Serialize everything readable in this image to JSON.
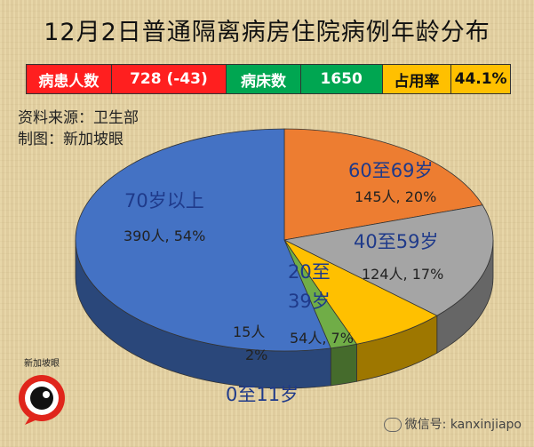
{
  "title": "12月2日普通隔离病房住院病例年龄分布",
  "stats": {
    "patients_label": "病患人数",
    "patients_value": "728 (-43)",
    "beds_label": "病床数",
    "beds_value": "1650",
    "occupancy_label": "占用率",
    "occupancy_value": "44.1%"
  },
  "source": {
    "line1": "资料来源：卫生部",
    "line2": "制图：新加坡眼"
  },
  "watermark": "微信号: kanxinjiapo",
  "logo_text": "新加坡眼",
  "chart_data": {
    "type": "pie",
    "slices": [
      {
        "label": "70岁以上",
        "count": "390人",
        "pct": "54%",
        "value": 390,
        "color": "#4472c4"
      },
      {
        "label": "60至69岁",
        "count": "145人",
        "pct": "20%",
        "value": 145,
        "color": "#ed7d31"
      },
      {
        "label": "40至59岁",
        "count": "124人",
        "pct": "17%",
        "value": 124,
        "color": "#a5a5a5"
      },
      {
        "label": "20至39岁",
        "count": "54人",
        "pct": "7%",
        "value": 54,
        "color": "#ffc000"
      },
      {
        "label": "0至11岁",
        "count": "15人",
        "pct": "2%",
        "value": 15,
        "color": "#70ad47"
      }
    ]
  }
}
